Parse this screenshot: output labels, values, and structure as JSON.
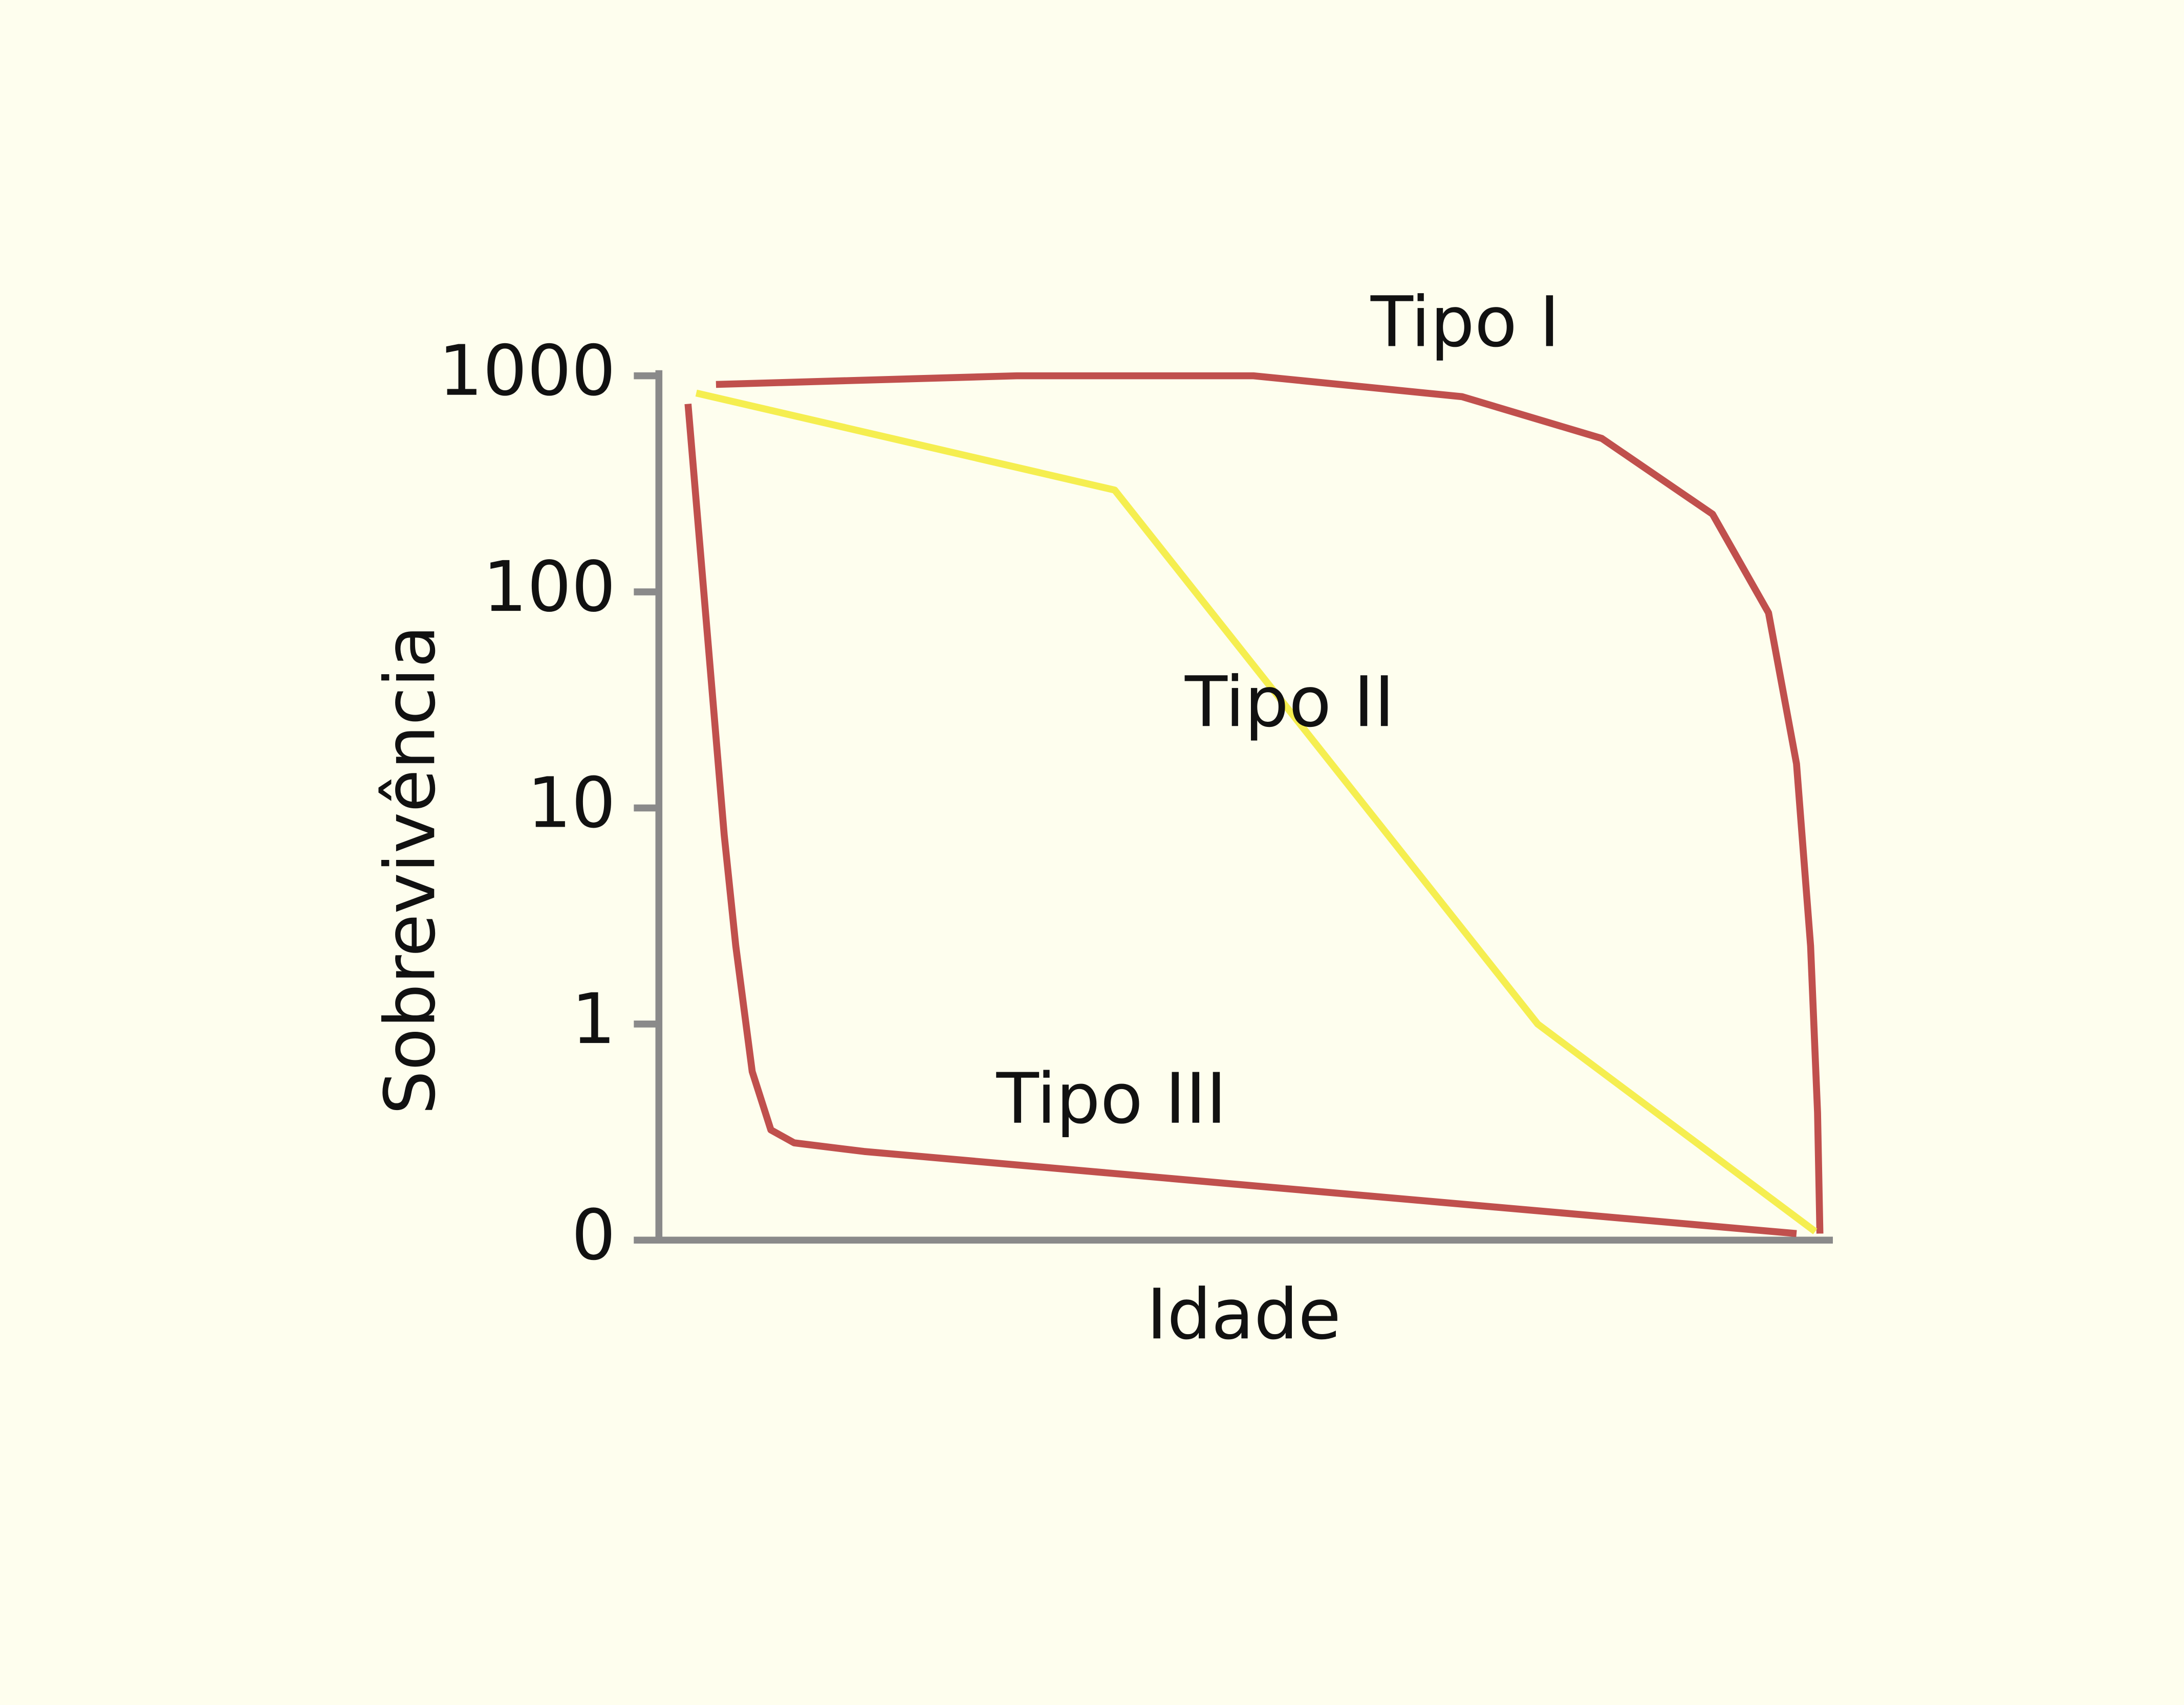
{
  "chart_data": {
    "type": "line",
    "xlabel": "Idade",
    "ylabel": "Sobrevivência",
    "xlim": [
      0,
      100
    ],
    "ylim": [
      0,
      1000
    ],
    "yscale": "log",
    "yticks": [
      0,
      1,
      10,
      100,
      1000
    ],
    "series": [
      {
        "name": "Tipo I",
        "color": "#c0504d",
        "x": [
          4.9,
          30.7,
          51.0,
          68.9,
          80.9,
          90.4,
          95.2,
          97.6,
          98.8,
          99.4,
          99.6
        ],
        "values": [
          912,
          1000,
          1000,
          800,
          513,
          229,
          80,
          16,
          2.3,
          0.59,
          0.03
        ]
      },
      {
        "name": "Tipo II",
        "color": "#f5ee50",
        "x": [
          3.2,
          39.1,
          75.4,
          99.2
        ],
        "values": [
          832,
          296,
          1,
          0.04
        ]
      },
      {
        "name": "Tipo III",
        "color": "#c0504d",
        "x": [
          2.5,
          5.6,
          6.6,
          8.0,
          9.6,
          11.6,
          17.6,
          97.6
        ],
        "values": [
          741,
          7.5,
          2.3,
          0.78,
          0.51,
          0.45,
          0.41,
          0.03
        ]
      }
    ]
  }
}
